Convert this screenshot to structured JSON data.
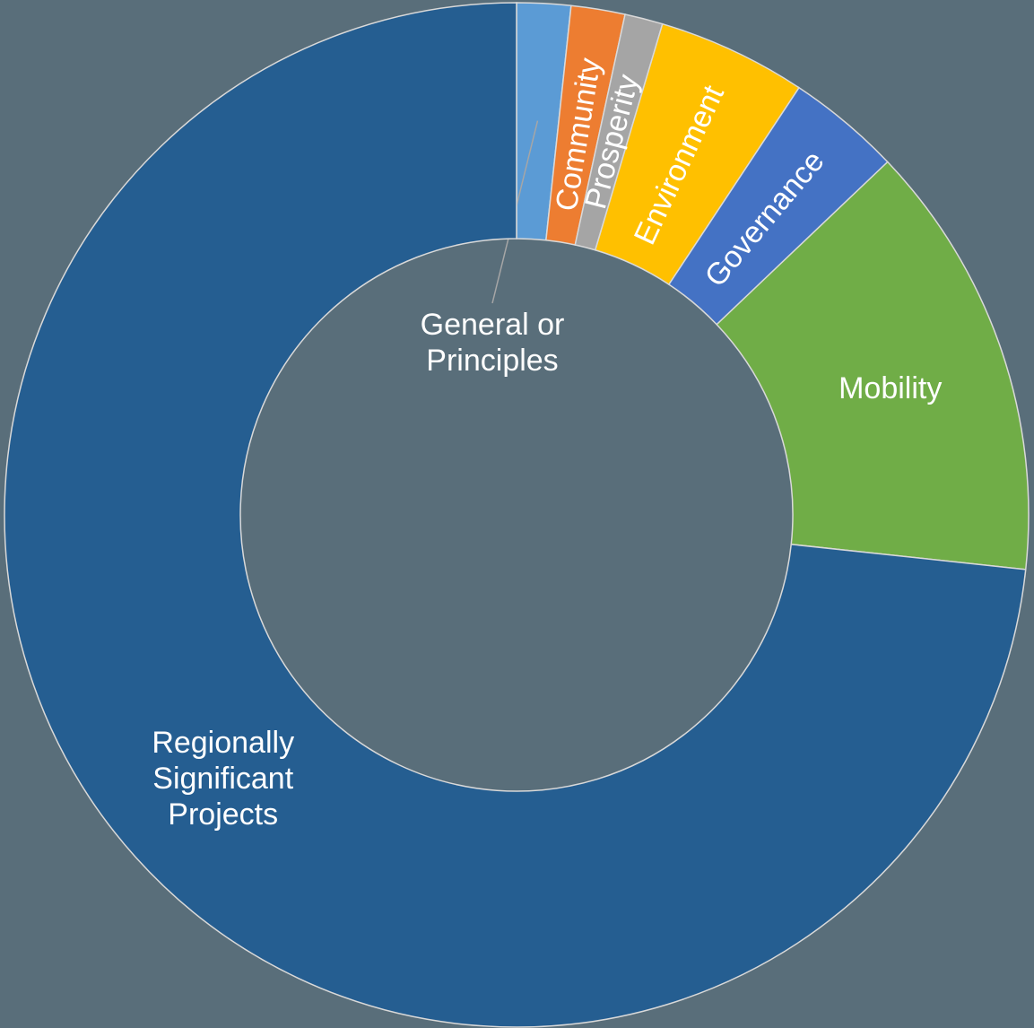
{
  "chart_data": {
    "type": "donut",
    "categories": [
      "General or Principles",
      "Community",
      "Prosperity",
      "Environment",
      "Governance",
      "Mobility",
      "Regionally Significant Projects"
    ],
    "values": [
      1.7,
      1.7,
      1.2,
      4.7,
      3.6,
      13.8,
      73.3
    ],
    "colors": [
      "#5b9bd5",
      "#ed7d31",
      "#a5a5a5",
      "#ffc000",
      "#4472c4",
      "#70ad47",
      "#255e91"
    ]
  }
}
